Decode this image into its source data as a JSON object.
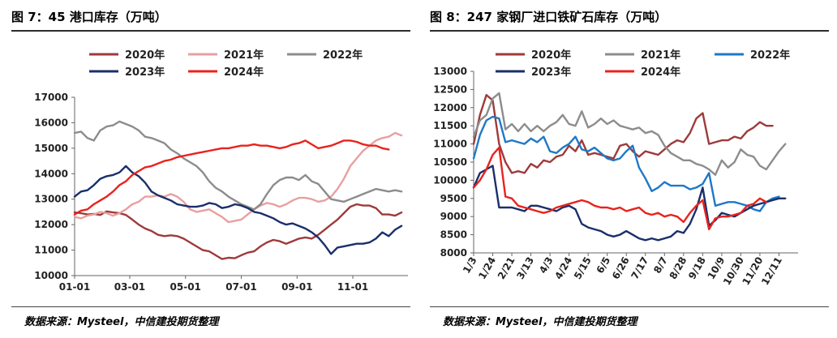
{
  "charts": [
    {
      "title": "图 7：45 港口库存（万吨）",
      "source": "数据来源：Mysteel，中信建投期货整理",
      "chart_data": {
        "type": "line",
        "title": "图 7：45 港口库存（万吨）",
        "xlabel": "",
        "ylabel": "",
        "ylim": [
          10000,
          17000
        ],
        "yticks": [
          "10000",
          "11000",
          "12000",
          "13000",
          "14000",
          "15000",
          "16000",
          "17000"
        ],
        "xlim": [
          0,
          52
        ],
        "xtick_pos": [
          0,
          8.6,
          17.3,
          26,
          34.7,
          43.4
        ],
        "xticks": [
          "01-01",
          "03-01",
          "05-01",
          "07-01",
          "09-01",
          "11-01"
        ],
        "grid": false,
        "legend": "top",
        "series": [
          {
            "name": "2020年",
            "color": "#9e3a3a",
            "values": [
              12480,
              12450,
              12400,
              12420,
              12380,
              12520,
              12480,
              12450,
              12380,
              12200,
              12000,
              11850,
              11750,
              11600,
              11550,
              11580,
              11550,
              11450,
              11300,
              11150,
              11000,
              10950,
              10800,
              10650,
              10700,
              10680,
              10800,
              10900,
              10950,
              11150,
              11300,
              11400,
              11350,
              11250,
              11350,
              11450,
              11500,
              11450,
              11600,
              11800,
              12000,
              12200,
              12450,
              12700,
              12800,
              12750,
              12750,
              12650,
              12400,
              12400,
              12350,
              12480
            ]
          },
          {
            "name": "2021年",
            "color": "#e8a0a0",
            "values": [
              12300,
              12250,
              12350,
              12400,
              12500,
              12450,
              12350,
              12450,
              12600,
              12800,
              12900,
              13100,
              13100,
              13150,
              13100,
              13200,
              13100,
              12900,
              12600,
              12500,
              12550,
              12600,
              12450,
              12300,
              12100,
              12150,
              12200,
              12400,
              12600,
              12750,
              12850,
              12800,
              12700,
              12800,
              12950,
              13050,
              13050,
              13000,
              12900,
              12950,
              13100,
              13400,
              13800,
              14300,
              14600,
              14900,
              15100,
              15300,
              15400,
              15450,
              15600,
              15500
            ]
          },
          {
            "name": "2022年",
            "color": "#8c8c8c",
            "values": [
              15600,
              15650,
              15400,
              15300,
              15700,
              15850,
              15900,
              16050,
              15950,
              15850,
              15700,
              15450,
              15400,
              15300,
              15200,
              14950,
              14800,
              14600,
              14450,
              14300,
              14050,
              13700,
              13450,
              13300,
              13100,
              12950,
              12800,
              12700,
              12600,
              12800,
              13200,
              13550,
              13750,
              13850,
              13850,
              13750,
              13950,
              13700,
              13600,
              13300,
              13000,
              12950,
              12900,
              13000,
              13100,
              13200,
              13300,
              13400,
              13350,
              13300,
              13350,
              13300
            ]
          },
          {
            "name": "2023年",
            "color": "#1a2f6a",
            "values": [
              13100,
              13300,
              13350,
              13550,
              13800,
              13900,
              13950,
              14050,
              14300,
              14050,
              13900,
              13650,
              13300,
              13150,
              13050,
              12950,
              12800,
              12750,
              12700,
              12700,
              12750,
              12850,
              12800,
              12650,
              12700,
              12800,
              12750,
              12650,
              12500,
              12450,
              12350,
              12250,
              12100,
              12000,
              12050,
              11950,
              11850,
              11700,
              11500,
              11200,
              10850,
              11100,
              11150,
              11200,
              11250,
              11250,
              11300,
              11450,
              11700,
              11550,
              11800,
              11950
            ]
          },
          {
            "name": "2024年",
            "color": "#e8231e",
            "values": [
              12400,
              12550,
              12600,
              12800,
              12950,
              13100,
              13300,
              13550,
              13700,
              13950,
              14100,
              14250,
              14300,
              14400,
              14500,
              14550,
              14650,
              14700,
              14750,
              14800,
              14850,
              14900,
              14950,
              15000,
              15000,
              15050,
              15100,
              15100,
              15150,
              15100,
              15100,
              15050,
              15000,
              15050,
              15150,
              15200,
              15300,
              15150,
              15000,
              15050,
              15100,
              15200,
              15300,
              15300,
              15250,
              15150,
              15100,
              15100,
              15000,
              14950
            ]
          }
        ]
      }
    },
    {
      "title": "图 8：247 家钢厂进口铁矿石库存（万吨）",
      "source": "数据来源：Mysteel，中信建投期货整理",
      "chart_data": {
        "type": "line",
        "title": "图 8：247 家钢厂进口铁矿石库存（万吨）",
        "xlabel": "",
        "ylabel": "",
        "ylim": [
          8000,
          13000
        ],
        "yticks": [
          "8000",
          "8500",
          "9000",
          "9500",
          "10000",
          "10500",
          "11000",
          "11500",
          "12000",
          "12500",
          "13000"
        ],
        "xlim": [
          0,
          51
        ],
        "xtick_pos": [
          0,
          3,
          6,
          9,
          12,
          15,
          18,
          21,
          24,
          27,
          30,
          33,
          36,
          39,
          42,
          45,
          48
        ],
        "xticks": [
          "1/3",
          "1/24",
          "2/21",
          "3/13",
          "4/3",
          "4/24",
          "5/15",
          "6/5",
          "6/26",
          "7/17",
          "8/7",
          "8/28",
          "9/18",
          "10/9",
          "10/30",
          "11/20",
          "12/11"
        ],
        "grid": false,
        "legend": "top",
        "series": [
          {
            "name": "2020年",
            "color": "#9e3a3a",
            "values": [
              11000,
              11800,
              12350,
              12200,
              11000,
              10500,
              10200,
              10250,
              10200,
              10450,
              10350,
              10550,
              10500,
              10650,
              10700,
              10950,
              10800,
              11100,
              10700,
              10750,
              10700,
              10650,
              10600,
              10950,
              11000,
              10800,
              10650,
              10800,
              10750,
              10700,
              10850,
              11000,
              11100,
              11050,
              11300,
              11700,
              11850,
              11000,
              11050,
              11100,
              11100,
              11200,
              11150,
              11350,
              11450,
              11600,
              11500,
              11500
            ]
          },
          {
            "name": "2021年",
            "color": "#8c8c8c",
            "values": [
              11200,
              11650,
              11800,
              12250,
              12400,
              11400,
              11550,
              11350,
              11550,
              11350,
              11500,
              11350,
              11500,
              11600,
              11800,
              11550,
              11500,
              11900,
              11450,
              11550,
              11700,
              11550,
              11650,
              11500,
              11450,
              11400,
              11450,
              11300,
              11350,
              11250,
              10950,
              10750,
              10650,
              10550,
              10550,
              10450,
              10400,
              10300,
              10150,
              10550,
              10350,
              10500,
              10850,
              10700,
              10650,
              10400,
              10300,
              10550,
              10800,
              11000
            ]
          },
          {
            "name": "2022年",
            "color": "#1e78c8",
            "values": [
              10600,
              11250,
              11650,
              11750,
              11700,
              11050,
              11100,
              11050,
              11000,
              11150,
              11050,
              11200,
              10800,
              10750,
              10900,
              11000,
              11200,
              10850,
              10800,
              10900,
              10750,
              10600,
              10550,
              10600,
              10800,
              10950,
              10350,
              10050,
              9700,
              9800,
              9950,
              9850,
              9850,
              9850,
              9750,
              9800,
              9900,
              10200,
              9300,
              9350,
              9400,
              9400,
              9350,
              9300,
              9200,
              9150,
              9400,
              9500,
              9550
            ]
          },
          {
            "name": "2023年",
            "color": "#1a2f6a",
            "values": [
              9800,
              10200,
              10300,
              10400,
              9250,
              9250,
              9250,
              9200,
              9150,
              9300,
              9300,
              9250,
              9200,
              9150,
              9250,
              9300,
              9200,
              8800,
              8700,
              8650,
              8600,
              8500,
              8450,
              8500,
              8600,
              8500,
              8400,
              8350,
              8400,
              8350,
              8400,
              8450,
              8600,
              8550,
              8800,
              9200,
              9800,
              8750,
              8900,
              9100,
              9050,
              9000,
              9100,
              9200,
              9300,
              9350,
              9400,
              9450,
              9500,
              9500
            ]
          },
          {
            "name": "2024年",
            "color": "#e8231e",
            "values": [
              9800,
              10000,
              10300,
              10700,
              10900,
              9550,
              9500,
              9300,
              9250,
              9200,
              9150,
              9100,
              9150,
              9250,
              9300,
              9350,
              9400,
              9450,
              9400,
              9300,
              9250,
              9250,
              9200,
              9250,
              9150,
              9200,
              9250,
              9100,
              9050,
              9100,
              9000,
              9050,
              9000,
              8850,
              9100,
              9300,
              9450,
              8650,
              8950,
              9000,
              9000,
              9050,
              9100,
              9300,
              9350,
              9500,
              9400
            ]
          }
        ]
      }
    }
  ]
}
